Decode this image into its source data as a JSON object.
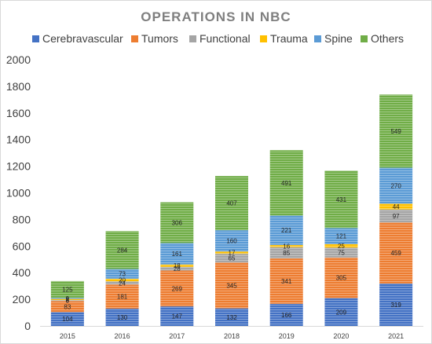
{
  "chart_data": {
    "type": "bar",
    "stacked": true,
    "title": "OPERATIONS IN NBC",
    "categories": [
      "2015",
      "2016",
      "2017",
      "2018",
      "2019",
      "2020",
      "2021"
    ],
    "series": [
      {
        "name": "Cerebravascular",
        "color": "#4472c4",
        "values": [
          104,
          130,
          147,
          132,
          166,
          209,
          319
        ]
      },
      {
        "name": "Tumors",
        "color": "#ed7d31",
        "values": [
          83,
          181,
          269,
          345,
          341,
          305,
          459
        ]
      },
      {
        "name": "Functional",
        "color": "#a5a5a5",
        "values": [
          8,
          24,
          28,
          65,
          85,
          75,
          97
        ]
      },
      {
        "name": "Trauma",
        "color": "#ffc000",
        "values": [
          8,
          20,
          18,
          17,
          16,
          25,
          44
        ]
      },
      {
        "name": "Spine",
        "color": "#5b9bd5",
        "values": [
          9,
          73,
          161,
          160,
          221,
          121,
          270
        ]
      },
      {
        "name": "Others",
        "color": "#70ad47",
        "values": [
          125,
          284,
          306,
          407,
          491,
          431,
          549
        ]
      }
    ],
    "data_labels": [
      [
        "104",
        "130",
        "147",
        "132",
        "166",
        "209",
        "319"
      ],
      [
        "83",
        "181",
        "269",
        "345",
        "341",
        "305",
        "459"
      ],
      [
        "8",
        "24",
        "28",
        "65",
        "85",
        "75",
        "97"
      ],
      [
        "8",
        "20",
        "18",
        "17",
        "16",
        "25",
        "44"
      ],
      [
        "9",
        "73",
        "161",
        "160",
        "221",
        "121",
        "270"
      ],
      [
        "125",
        "284",
        "306",
        "407",
        "491",
        "431",
        "549"
      ]
    ],
    "ylim": [
      0,
      2000
    ],
    "yticks": [
      0,
      200,
      400,
      600,
      800,
      1000,
      1200,
      1400,
      1600,
      1800,
      2000
    ],
    "ytick_labels": [
      "0",
      "200",
      "400",
      "600",
      "800",
      "1000",
      "1200",
      "1400",
      "1600",
      "1800",
      "2000"
    ],
    "legend_position": "top",
    "grid": false
  }
}
